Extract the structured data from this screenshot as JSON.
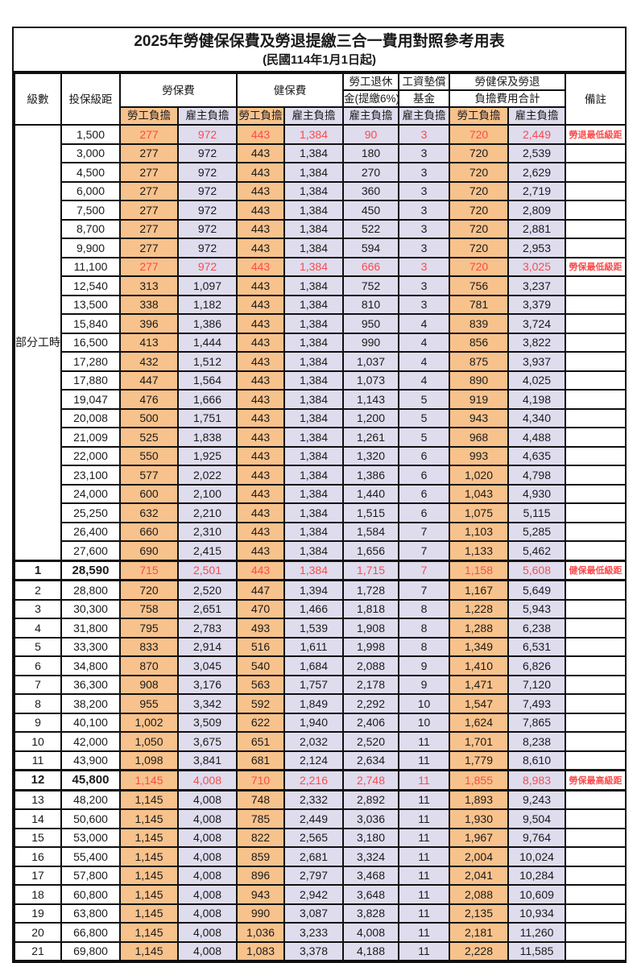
{
  "title": "2025年勞健保保費及勞退提繳三合一費用對照參考用表",
  "subtitle": "(民國114年1月1日起)",
  "colors": {
    "employee_column_bg": "#F8C28C",
    "employer_column_bg": "#DFDCEE",
    "highlight_red": "#FB4B4B",
    "border_black": "#101010"
  },
  "header": {
    "level": "級數",
    "bracket": "投保級距",
    "labor_fee": "勞保費",
    "health_fee": "健保費",
    "pension_line1": "勞工退休",
    "pension_line2": "金(提繳6%)",
    "wage_fund_line1": "工資墊償",
    "wage_fund_line2": "基金",
    "total_line1": "勞健保及勞退",
    "total_line2": "負擔費用合計",
    "note": "備註",
    "employee": "勞工負擔",
    "employer": "雇主負擔"
  },
  "part_time_label": "部分工時",
  "rows": [
    {
      "level": "",
      "bracket": "1,500",
      "labor_emp": "277",
      "labor_er": "972",
      "health_emp": "443",
      "health_er": "1,384",
      "pension_er": "90",
      "wage_er": "3",
      "total_emp": "720",
      "total_er": "2,449",
      "note": "勞退最低級距",
      "red": true,
      "em": false
    },
    {
      "level": "",
      "bracket": "3,000",
      "labor_emp": "277",
      "labor_er": "972",
      "health_emp": "443",
      "health_er": "1,384",
      "pension_er": "180",
      "wage_er": "3",
      "total_emp": "720",
      "total_er": "2,539",
      "note": "",
      "red": false,
      "em": false
    },
    {
      "level": "",
      "bracket": "4,500",
      "labor_emp": "277",
      "labor_er": "972",
      "health_emp": "443",
      "health_er": "1,384",
      "pension_er": "270",
      "wage_er": "3",
      "total_emp": "720",
      "total_er": "2,629",
      "note": "",
      "red": false,
      "em": false
    },
    {
      "level": "",
      "bracket": "6,000",
      "labor_emp": "277",
      "labor_er": "972",
      "health_emp": "443",
      "health_er": "1,384",
      "pension_er": "360",
      "wage_er": "3",
      "total_emp": "720",
      "total_er": "2,719",
      "note": "",
      "red": false,
      "em": false
    },
    {
      "level": "",
      "bracket": "7,500",
      "labor_emp": "277",
      "labor_er": "972",
      "health_emp": "443",
      "health_er": "1,384",
      "pension_er": "450",
      "wage_er": "3",
      "total_emp": "720",
      "total_er": "2,809",
      "note": "",
      "red": false,
      "em": false
    },
    {
      "level": "",
      "bracket": "8,700",
      "labor_emp": "277",
      "labor_er": "972",
      "health_emp": "443",
      "health_er": "1,384",
      "pension_er": "522",
      "wage_er": "3",
      "total_emp": "720",
      "total_er": "2,881",
      "note": "",
      "red": false,
      "em": false
    },
    {
      "level": "",
      "bracket": "9,900",
      "labor_emp": "277",
      "labor_er": "972",
      "health_emp": "443",
      "health_er": "1,384",
      "pension_er": "594",
      "wage_er": "3",
      "total_emp": "720",
      "total_er": "2,953",
      "note": "",
      "red": false,
      "em": false
    },
    {
      "level": "",
      "bracket": "11,100",
      "labor_emp": "277",
      "labor_er": "972",
      "health_emp": "443",
      "health_er": "1,384",
      "pension_er": "666",
      "wage_er": "3",
      "total_emp": "720",
      "total_er": "3,025",
      "note": "勞保最低級距",
      "red": true,
      "em": false
    },
    {
      "level": "",
      "bracket": "12,540",
      "labor_emp": "313",
      "labor_er": "1,097",
      "health_emp": "443",
      "health_er": "1,384",
      "pension_er": "752",
      "wage_er": "3",
      "total_emp": "756",
      "total_er": "3,237",
      "note": "",
      "red": false,
      "em": false
    },
    {
      "level": "",
      "bracket": "13,500",
      "labor_emp": "338",
      "labor_er": "1,182",
      "health_emp": "443",
      "health_er": "1,384",
      "pension_er": "810",
      "wage_er": "3",
      "total_emp": "781",
      "total_er": "3,379",
      "note": "",
      "red": false,
      "em": false
    },
    {
      "level": "",
      "bracket": "15,840",
      "labor_emp": "396",
      "labor_er": "1,386",
      "health_emp": "443",
      "health_er": "1,384",
      "pension_er": "950",
      "wage_er": "4",
      "total_emp": "839",
      "total_er": "3,724",
      "note": "",
      "red": false,
      "em": false
    },
    {
      "level": "",
      "bracket": "16,500",
      "labor_emp": "413",
      "labor_er": "1,444",
      "health_emp": "443",
      "health_er": "1,384",
      "pension_er": "990",
      "wage_er": "4",
      "total_emp": "856",
      "total_er": "3,822",
      "note": "",
      "red": false,
      "em": false
    },
    {
      "level": "",
      "bracket": "17,280",
      "labor_emp": "432",
      "labor_er": "1,512",
      "health_emp": "443",
      "health_er": "1,384",
      "pension_er": "1,037",
      "wage_er": "4",
      "total_emp": "875",
      "total_er": "3,937",
      "note": "",
      "red": false,
      "em": false
    },
    {
      "level": "",
      "bracket": "17,880",
      "labor_emp": "447",
      "labor_er": "1,564",
      "health_emp": "443",
      "health_er": "1,384",
      "pension_er": "1,073",
      "wage_er": "4",
      "total_emp": "890",
      "total_er": "4,025",
      "note": "",
      "red": false,
      "em": false
    },
    {
      "level": "",
      "bracket": "19,047",
      "labor_emp": "476",
      "labor_er": "1,666",
      "health_emp": "443",
      "health_er": "1,384",
      "pension_er": "1,143",
      "wage_er": "5",
      "total_emp": "919",
      "total_er": "4,198",
      "note": "",
      "red": false,
      "em": false
    },
    {
      "level": "",
      "bracket": "20,008",
      "labor_emp": "500",
      "labor_er": "1,751",
      "health_emp": "443",
      "health_er": "1,384",
      "pension_er": "1,200",
      "wage_er": "5",
      "total_emp": "943",
      "total_er": "4,340",
      "note": "",
      "red": false,
      "em": false
    },
    {
      "level": "",
      "bracket": "21,009",
      "labor_emp": "525",
      "labor_er": "1,838",
      "health_emp": "443",
      "health_er": "1,384",
      "pension_er": "1,261",
      "wage_er": "5",
      "total_emp": "968",
      "total_er": "4,488",
      "note": "",
      "red": false,
      "em": false
    },
    {
      "level": "",
      "bracket": "22,000",
      "labor_emp": "550",
      "labor_er": "1,925",
      "health_emp": "443",
      "health_er": "1,384",
      "pension_er": "1,320",
      "wage_er": "6",
      "total_emp": "993",
      "total_er": "4,635",
      "note": "",
      "red": false,
      "em": false
    },
    {
      "level": "",
      "bracket": "23,100",
      "labor_emp": "577",
      "labor_er": "2,022",
      "health_emp": "443",
      "health_er": "1,384",
      "pension_er": "1,386",
      "wage_er": "6",
      "total_emp": "1,020",
      "total_er": "4,798",
      "note": "",
      "red": false,
      "em": false
    },
    {
      "level": "",
      "bracket": "24,000",
      "labor_emp": "600",
      "labor_er": "2,100",
      "health_emp": "443",
      "health_er": "1,384",
      "pension_er": "1,440",
      "wage_er": "6",
      "total_emp": "1,043",
      "total_er": "4,930",
      "note": "",
      "red": false,
      "em": false
    },
    {
      "level": "",
      "bracket": "25,250",
      "labor_emp": "632",
      "labor_er": "2,210",
      "health_emp": "443",
      "health_er": "1,384",
      "pension_er": "1,515",
      "wage_er": "6",
      "total_emp": "1,075",
      "total_er": "5,115",
      "note": "",
      "red": false,
      "em": false
    },
    {
      "level": "",
      "bracket": "26,400",
      "labor_emp": "660",
      "labor_er": "2,310",
      "health_emp": "443",
      "health_er": "1,384",
      "pension_er": "1,584",
      "wage_er": "7",
      "total_emp": "1,103",
      "total_er": "5,285",
      "note": "",
      "red": false,
      "em": false
    },
    {
      "level": "",
      "bracket": "27,600",
      "labor_emp": "690",
      "labor_er": "2,415",
      "health_emp": "443",
      "health_er": "1,384",
      "pension_er": "1,656",
      "wage_er": "7",
      "total_emp": "1,133",
      "total_er": "5,462",
      "note": "",
      "red": false,
      "em": false
    },
    {
      "level": "1",
      "bracket": "28,590",
      "labor_emp": "715",
      "labor_er": "2,501",
      "health_emp": "443",
      "health_er": "1,384",
      "pension_er": "1,715",
      "wage_er": "7",
      "total_emp": "1,158",
      "total_er": "5,608",
      "note": "健保最低級距",
      "red": true,
      "em": true
    },
    {
      "level": "2",
      "bracket": "28,800",
      "labor_emp": "720",
      "labor_er": "2,520",
      "health_emp": "447",
      "health_er": "1,394",
      "pension_er": "1,728",
      "wage_er": "7",
      "total_emp": "1,167",
      "total_er": "5,649",
      "note": "",
      "red": false,
      "em": false
    },
    {
      "level": "3",
      "bracket": "30,300",
      "labor_emp": "758",
      "labor_er": "2,651",
      "health_emp": "470",
      "health_er": "1,466",
      "pension_er": "1,818",
      "wage_er": "8",
      "total_emp": "1,228",
      "total_er": "5,943",
      "note": "",
      "red": false,
      "em": false
    },
    {
      "level": "4",
      "bracket": "31,800",
      "labor_emp": "795",
      "labor_er": "2,783",
      "health_emp": "493",
      "health_er": "1,539",
      "pension_er": "1,908",
      "wage_er": "8",
      "total_emp": "1,288",
      "total_er": "6,238",
      "note": "",
      "red": false,
      "em": false
    },
    {
      "level": "5",
      "bracket": "33,300",
      "labor_emp": "833",
      "labor_er": "2,914",
      "health_emp": "516",
      "health_er": "1,611",
      "pension_er": "1,998",
      "wage_er": "8",
      "total_emp": "1,349",
      "total_er": "6,531",
      "note": "",
      "red": false,
      "em": false
    },
    {
      "level": "6",
      "bracket": "34,800",
      "labor_emp": "870",
      "labor_er": "3,045",
      "health_emp": "540",
      "health_er": "1,684",
      "pension_er": "2,088",
      "wage_er": "9",
      "total_emp": "1,410",
      "total_er": "6,826",
      "note": "",
      "red": false,
      "em": false
    },
    {
      "level": "7",
      "bracket": "36,300",
      "labor_emp": "908",
      "labor_er": "3,176",
      "health_emp": "563",
      "health_er": "1,757",
      "pension_er": "2,178",
      "wage_er": "9",
      "total_emp": "1,471",
      "total_er": "7,120",
      "note": "",
      "red": false,
      "em": false
    },
    {
      "level": "8",
      "bracket": "38,200",
      "labor_emp": "955",
      "labor_er": "3,342",
      "health_emp": "592",
      "health_er": "1,849",
      "pension_er": "2,292",
      "wage_er": "10",
      "total_emp": "1,547",
      "total_er": "7,493",
      "note": "",
      "red": false,
      "em": false
    },
    {
      "level": "9",
      "bracket": "40,100",
      "labor_emp": "1,002",
      "labor_er": "3,509",
      "health_emp": "622",
      "health_er": "1,940",
      "pension_er": "2,406",
      "wage_er": "10",
      "total_emp": "1,624",
      "total_er": "7,865",
      "note": "",
      "red": false,
      "em": false
    },
    {
      "level": "10",
      "bracket": "42,000",
      "labor_emp": "1,050",
      "labor_er": "3,675",
      "health_emp": "651",
      "health_er": "2,032",
      "pension_er": "2,520",
      "wage_er": "11",
      "total_emp": "1,701",
      "total_er": "8,238",
      "note": "",
      "red": false,
      "em": false
    },
    {
      "level": "11",
      "bracket": "43,900",
      "labor_emp": "1,098",
      "labor_er": "3,841",
      "health_emp": "681",
      "health_er": "2,124",
      "pension_er": "2,634",
      "wage_er": "11",
      "total_emp": "1,779",
      "total_er": "8,610",
      "note": "",
      "red": false,
      "em": false
    },
    {
      "level": "12",
      "bracket": "45,800",
      "labor_emp": "1,145",
      "labor_er": "4,008",
      "health_emp": "710",
      "health_er": "2,216",
      "pension_er": "2,748",
      "wage_er": "11",
      "total_emp": "1,855",
      "total_er": "8,983",
      "note": "勞保最高級距",
      "red": true,
      "em": true
    },
    {
      "level": "13",
      "bracket": "48,200",
      "labor_emp": "1,145",
      "labor_er": "4,008",
      "health_emp": "748",
      "health_er": "2,332",
      "pension_er": "2,892",
      "wage_er": "11",
      "total_emp": "1,893",
      "total_er": "9,243",
      "note": "",
      "red": false,
      "em": false
    },
    {
      "level": "14",
      "bracket": "50,600",
      "labor_emp": "1,145",
      "labor_er": "4,008",
      "health_emp": "785",
      "health_er": "2,449",
      "pension_er": "3,036",
      "wage_er": "11",
      "total_emp": "1,930",
      "total_er": "9,504",
      "note": "",
      "red": false,
      "em": false
    },
    {
      "level": "15",
      "bracket": "53,000",
      "labor_emp": "1,145",
      "labor_er": "4,008",
      "health_emp": "822",
      "health_er": "2,565",
      "pension_er": "3,180",
      "wage_er": "11",
      "total_emp": "1,967",
      "total_er": "9,764",
      "note": "",
      "red": false,
      "em": false
    },
    {
      "level": "16",
      "bracket": "55,400",
      "labor_emp": "1,145",
      "labor_er": "4,008",
      "health_emp": "859",
      "health_er": "2,681",
      "pension_er": "3,324",
      "wage_er": "11",
      "total_emp": "2,004",
      "total_er": "10,024",
      "note": "",
      "red": false,
      "em": false
    },
    {
      "level": "17",
      "bracket": "57,800",
      "labor_emp": "1,145",
      "labor_er": "4,008",
      "health_emp": "896",
      "health_er": "2,797",
      "pension_er": "3,468",
      "wage_er": "11",
      "total_emp": "2,041",
      "total_er": "10,284",
      "note": "",
      "red": false,
      "em": false
    },
    {
      "level": "18",
      "bracket": "60,800",
      "labor_emp": "1,145",
      "labor_er": "4,008",
      "health_emp": "943",
      "health_er": "2,942",
      "pension_er": "3,648",
      "wage_er": "11",
      "total_emp": "2,088",
      "total_er": "10,609",
      "note": "",
      "red": false,
      "em": false
    },
    {
      "level": "19",
      "bracket": "63,800",
      "labor_emp": "1,145",
      "labor_er": "4,008",
      "health_emp": "990",
      "health_er": "3,087",
      "pension_er": "3,828",
      "wage_er": "11",
      "total_emp": "2,135",
      "total_er": "10,934",
      "note": "",
      "red": false,
      "em": false
    },
    {
      "level": "20",
      "bracket": "66,800",
      "labor_emp": "1,145",
      "labor_er": "4,008",
      "health_emp": "1,036",
      "health_er": "3,233",
      "pension_er": "4,008",
      "wage_er": "11",
      "total_emp": "2,181",
      "total_er": "11,260",
      "note": "",
      "red": false,
      "em": false
    },
    {
      "level": "21",
      "bracket": "69,800",
      "labor_emp": "1,145",
      "labor_er": "4,008",
      "health_emp": "1,083",
      "health_er": "3,378",
      "pension_er": "4,188",
      "wage_er": "11",
      "total_emp": "2,228",
      "total_er": "11,585",
      "note": "",
      "red": false,
      "em": false
    }
  ]
}
